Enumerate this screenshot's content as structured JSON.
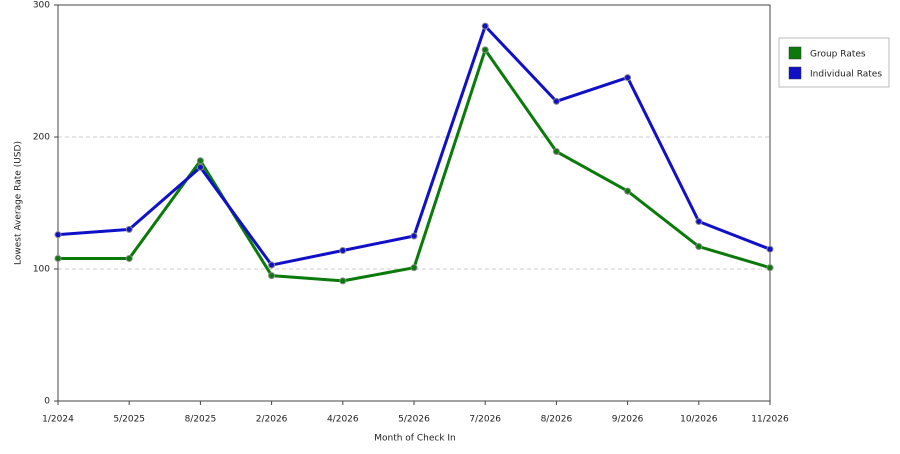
{
  "chart_data": {
    "type": "line",
    "x_label": "Month of Check In",
    "y_label": "Lowest Average Rate (USD)",
    "categories": [
      "1/2024",
      "5/2025",
      "8/2025",
      "2/2026",
      "4/2026",
      "5/2026",
      "7/2026",
      "8/2026",
      "9/2026",
      "10/2026",
      "11/2026"
    ],
    "series": [
      {
        "name": "Group Rates",
        "color": "#0a7a0a",
        "values": [
          108,
          108,
          182,
          95,
          91,
          101,
          266,
          189,
          159,
          117,
          101
        ]
      },
      {
        "name": "Individual Rates",
        "color": "#1010c8",
        "values": [
          126,
          130,
          177,
          103,
          114,
          125,
          284,
          227,
          245,
          136,
          115
        ]
      }
    ],
    "ylim": [
      0,
      300
    ],
    "yticks": [
      0,
      100,
      200,
      300
    ],
    "grid": true,
    "legend": "right"
  }
}
